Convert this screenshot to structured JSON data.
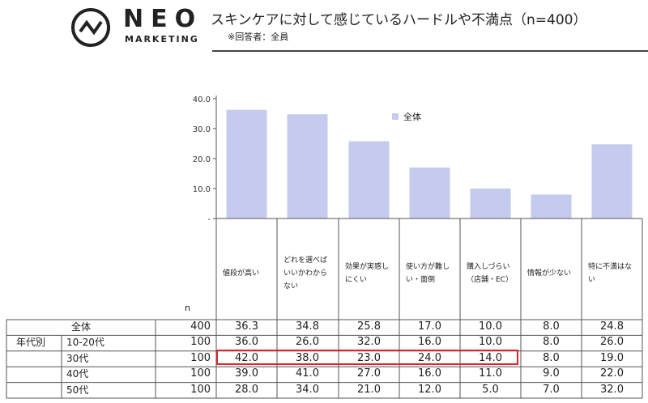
{
  "header": {
    "brand_neo": "NEO",
    "brand_marketing": "MARKETING",
    "title": "スキンケアに対して感じているハードルや不満点（n=400）",
    "subtitle": "※回答者：全員"
  },
  "chart_data": {
    "type": "bar",
    "title": "スキンケアに対して感じているハードルや不満点（n=400）",
    "categories": [
      "値段が高い",
      "どれを選べばいいかわからない",
      "効果が実感しにくい",
      "使い方が難しい・面倒",
      "購入しづらい（店舗・EC）",
      "情報が少ない",
      "特に不満はない"
    ],
    "category_labels": [
      "値段が高い",
      "どれを選べば\nいいかわから\nない",
      "効果が実感し\nにくい",
      "使い方が難し\nい・面倒",
      "購入しづらい\n（店舗・EC）",
      "情報が少ない",
      "特に不満はな\nい"
    ],
    "series": [
      {
        "name": "全体",
        "values": [
          36.3,
          34.8,
          25.8,
          17.0,
          10.0,
          8.0,
          24.8
        ],
        "color": "#c5cbee"
      }
    ],
    "yticks": [
      "40.0",
      "30.0",
      "20.0",
      "10.0",
      "-"
    ],
    "ylim": [
      0,
      40
    ],
    "legend_position": "top-center",
    "grid": false
  },
  "table": {
    "n_header": "n",
    "group_label": "年代別",
    "rows": [
      {
        "label": "全体",
        "n": "400",
        "values": [
          "36.3",
          "34.8",
          "25.8",
          "17.0",
          "10.0",
          "8.0",
          "24.8"
        ]
      },
      {
        "label": "10-20代",
        "n": "100",
        "values": [
          "36.0",
          "26.0",
          "32.0",
          "16.0",
          "10.0",
          "8.0",
          "26.0"
        ]
      },
      {
        "label": "30代",
        "n": "100",
        "values": [
          "42.0",
          "38.0",
          "23.0",
          "24.0",
          "14.0",
          "8.0",
          "19.0"
        ]
      },
      {
        "label": "40代",
        "n": "100",
        "values": [
          "39.0",
          "41.0",
          "27.0",
          "16.0",
          "11.0",
          "9.0",
          "22.0"
        ]
      },
      {
        "label": "50代",
        "n": "100",
        "values": [
          "28.0",
          "34.0",
          "21.0",
          "12.0",
          "5.0",
          "7.0",
          "32.0"
        ]
      }
    ]
  },
  "colors": {
    "bar": "#c5cbee",
    "highlight": "#d9252b",
    "grid_line": "#555555"
  }
}
